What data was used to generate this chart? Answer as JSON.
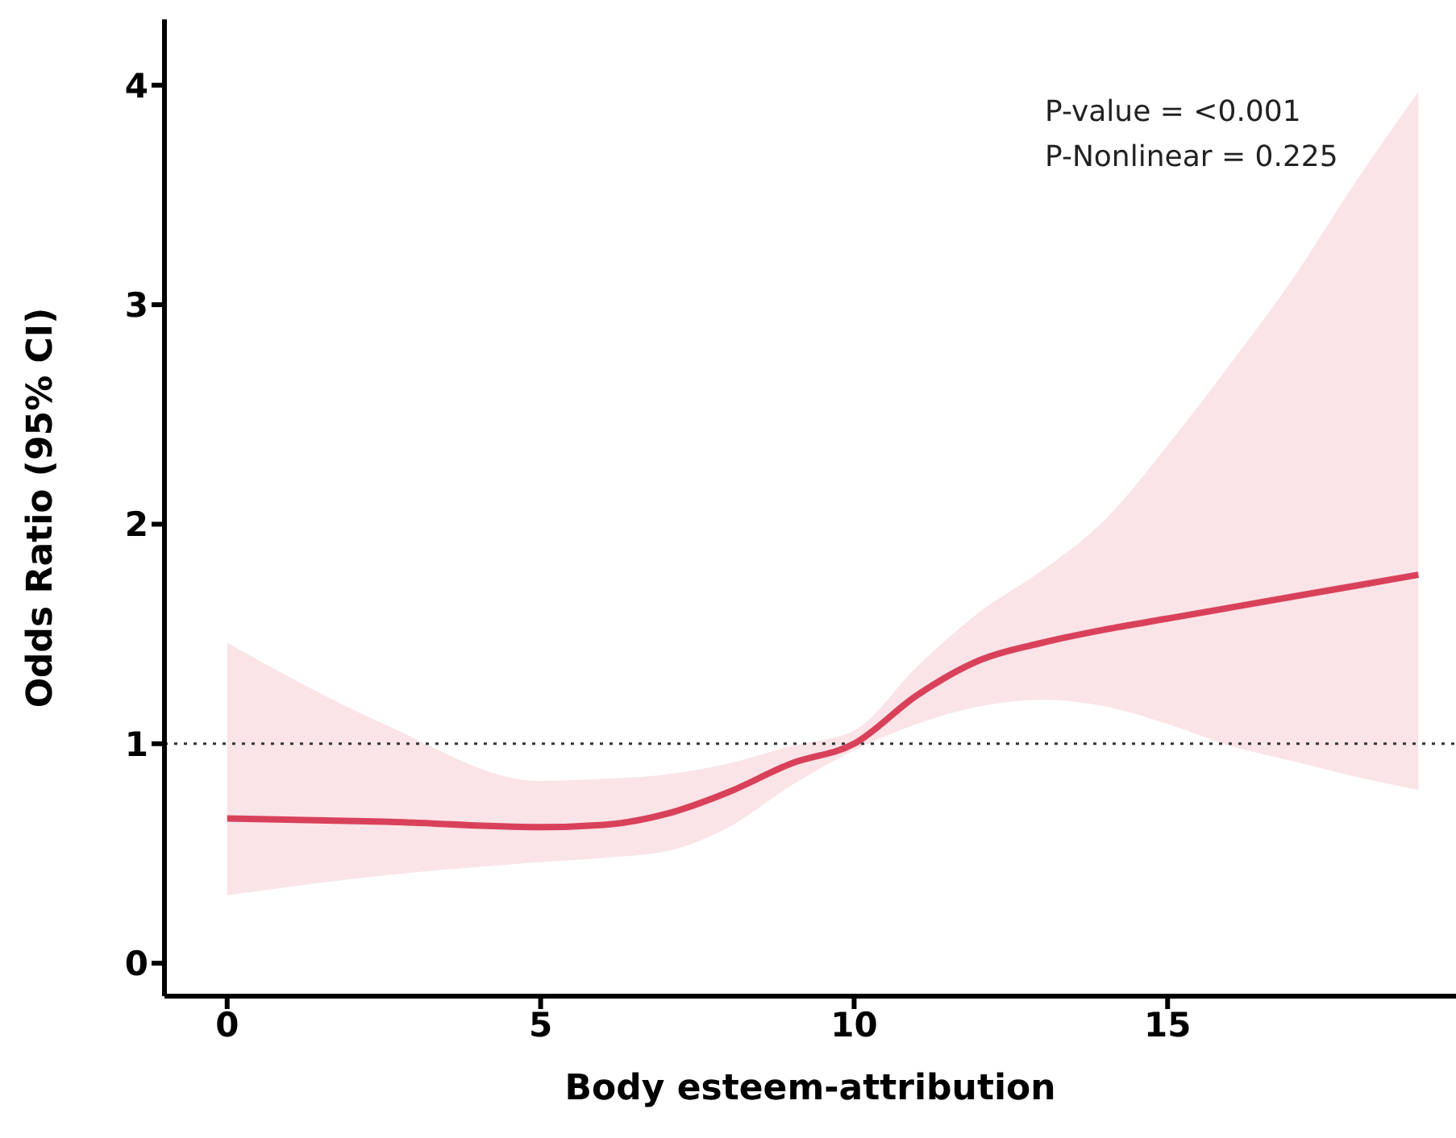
{
  "chart_data": {
    "type": "line",
    "xlabel": "Body esteem-attribution",
    "ylabel": "Odds Ratio (95% CI)",
    "annotations": [
      "P-value = <0.001",
      "P-Nonlinear = 0.225"
    ],
    "x": [
      0,
      2.5,
      5,
      6,
      7,
      8,
      9,
      10,
      11,
      12,
      13,
      14,
      15,
      16,
      17,
      18,
      19
    ],
    "series": [
      {
        "color": "#d9415a",
        "values": [
          0.66,
          0.645,
          0.62,
          0.63,
          0.68,
          0.78,
          0.91,
          1.0,
          1.22,
          1.38,
          1.46,
          1.52,
          1.57,
          1.62,
          1.67,
          1.72,
          1.77
        ],
        "lower": [
          0.31,
          0.4,
          0.46,
          0.48,
          0.51,
          0.62,
          0.81,
          0.97,
          1.09,
          1.17,
          1.2,
          1.17,
          1.09,
          0.99,
          0.92,
          0.85,
          0.79
        ],
        "upper": [
          1.46,
          1.09,
          0.83,
          0.84,
          0.86,
          0.91,
          0.99,
          1.06,
          1.35,
          1.6,
          1.79,
          2.02,
          2.36,
          2.73,
          3.12,
          3.56,
          3.97
        ]
      }
    ],
    "xlim": [
      -1,
      19.6
    ],
    "xticks": [
      0,
      5,
      10,
      15
    ],
    "ylim": [
      -0.15,
      4.3
    ],
    "yticks": [
      0,
      1,
      2,
      3,
      4
    ],
    "ref_lines": [
      {
        "axis": "y",
        "value": 1,
        "line_style": "dotted",
        "color": "#333333"
      }
    ],
    "grid": false,
    "legend": false,
    "marker": "none",
    "line_style": "solid"
  }
}
